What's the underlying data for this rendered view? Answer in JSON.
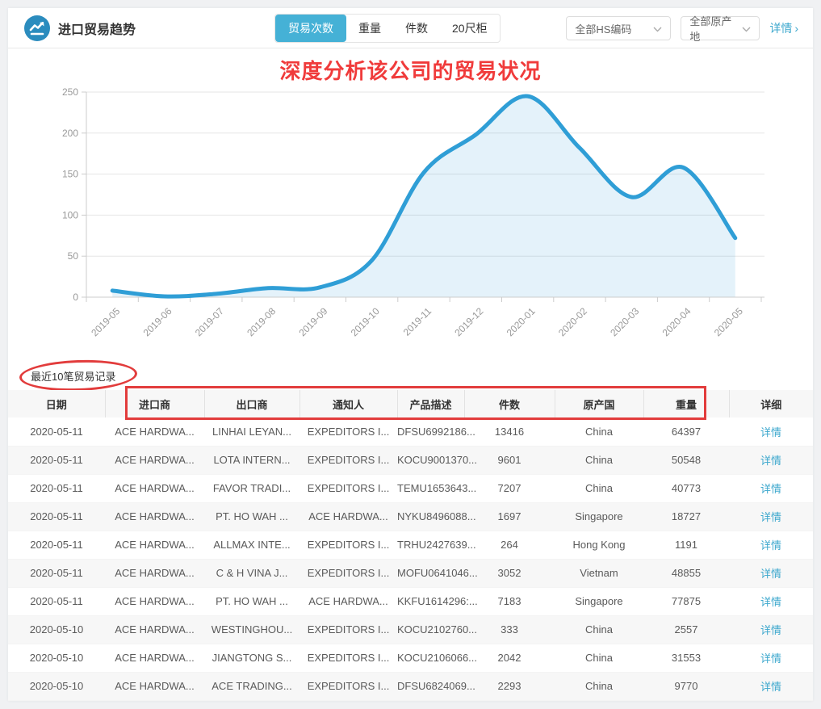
{
  "header": {
    "title": "进口贸易趋势",
    "tabs": [
      {
        "label": "贸易次数",
        "active": true
      },
      {
        "label": "重量",
        "active": false
      },
      {
        "label": "件数",
        "active": false
      },
      {
        "label": "20尺柜",
        "active": false
      }
    ],
    "filters": [
      {
        "value": "全部HS编码"
      },
      {
        "value": "全部原产地"
      }
    ],
    "detail_link": "详情",
    "detail_arrow": "›"
  },
  "annotations": {
    "chart_title": "深度分析该公司的贸易状况",
    "records_label": "最近10笔贸易记录"
  },
  "chart_data": {
    "type": "area",
    "title": "",
    "x": [
      "2019-05",
      "2019-06",
      "2019-07",
      "2019-08",
      "2019-09",
      "2019-10",
      "2019-11",
      "2019-12",
      "2020-01",
      "2020-02",
      "2020-03",
      "2020-04",
      "2020-05"
    ],
    "series": [
      {
        "name": "贸易次数",
        "values": [
          8,
          1,
          4,
          11,
          12,
          45,
          152,
          198,
          245,
          182,
          122,
          158,
          72
        ]
      }
    ],
    "ylim": [
      0,
      250
    ],
    "y_ticks": [
      0,
      50,
      100,
      150,
      200,
      250
    ],
    "grid": true,
    "legend_position": "none",
    "line_color": "#2f9ed6",
    "fill_color": "rgba(47,158,214,0.13)"
  },
  "table": {
    "headers": [
      "日期",
      "进口商",
      "出口商",
      "通知人",
      "产品描述",
      "件数",
      "原产国",
      "重量",
      "详细"
    ],
    "detail_label": "详情",
    "rows": [
      [
        "2020-05-11",
        "ACE HARDWA...",
        "LINHAI LEYAN...",
        "EXPEDITORS I...",
        "DFSU6992186...",
        "13416",
        "China",
        "64397"
      ],
      [
        "2020-05-11",
        "ACE HARDWA...",
        "LOTA INTERN...",
        "EXPEDITORS I...",
        "KOCU9001370...",
        "9601",
        "China",
        "50548"
      ],
      [
        "2020-05-11",
        "ACE HARDWA...",
        "FAVOR TRADI...",
        "EXPEDITORS I...",
        "TEMU1653643...",
        "7207",
        "China",
        "40773"
      ],
      [
        "2020-05-11",
        "ACE HARDWA...",
        "PT. HO WAH ...",
        "ACE HARDWA...",
        "NYKU8496088...",
        "1697",
        "Singapore",
        "18727"
      ],
      [
        "2020-05-11",
        "ACE HARDWA...",
        "ALLMAX INTE...",
        "EXPEDITORS I...",
        "TRHU2427639...",
        "264",
        "Hong Kong",
        "1191"
      ],
      [
        "2020-05-11",
        "ACE HARDWA...",
        "C & H VINA J...",
        "EXPEDITORS I...",
        "MOFU0641046...",
        "3052",
        "Vietnam",
        "48855"
      ],
      [
        "2020-05-11",
        "ACE HARDWA...",
        "PT. HO WAH ...",
        "ACE HARDWA...",
        "KKFU1614296:...",
        "7183",
        "Singapore",
        "77875"
      ],
      [
        "2020-05-10",
        "ACE HARDWA...",
        "WESTINGHOU...",
        "EXPEDITORS I...",
        "KOCU2102760...",
        "333",
        "China",
        "2557"
      ],
      [
        "2020-05-10",
        "ACE HARDWA...",
        "JIANGTONG S...",
        "EXPEDITORS I...",
        "KOCU2106066...",
        "2042",
        "China",
        "31553"
      ],
      [
        "2020-05-10",
        "ACE HARDWA...",
        "ACE TRADING...",
        "EXPEDITORS I...",
        "DFSU6824069...",
        "2293",
        "China",
        "9770"
      ]
    ]
  },
  "colors": {
    "accent_cyan": "#45b1d6",
    "link_cyan": "#3ba7cd",
    "annotation_red": "#e23c3c",
    "icon_blue": "#2b8cbe"
  }
}
